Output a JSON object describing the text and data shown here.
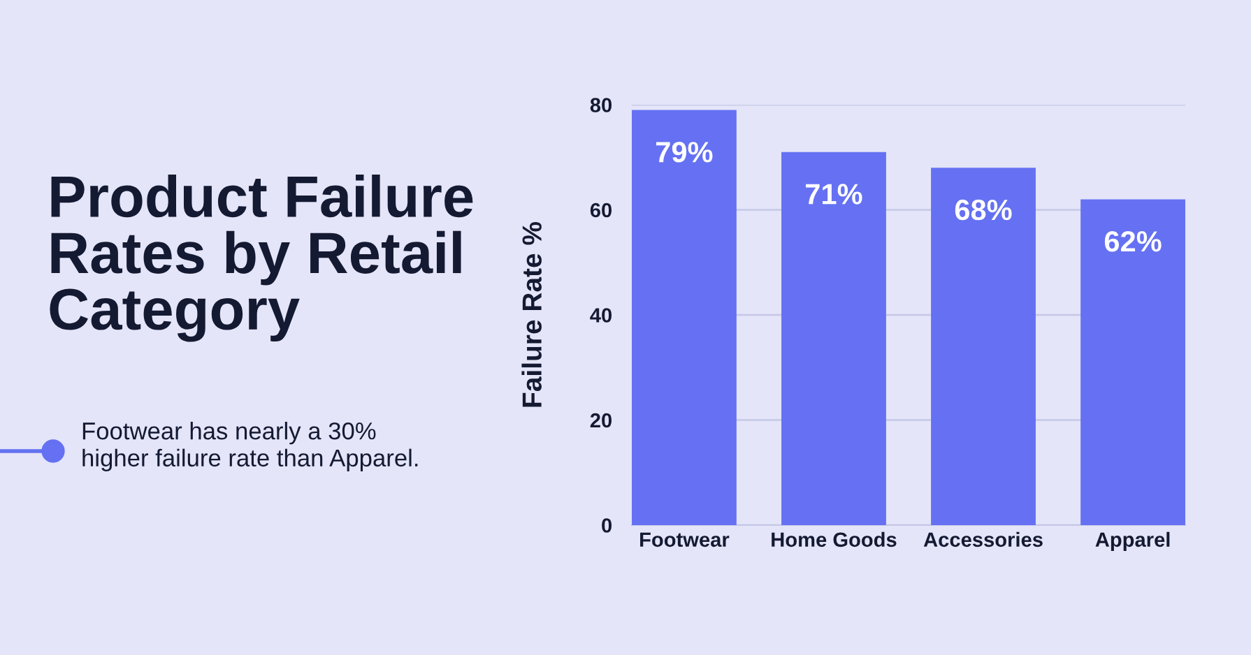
{
  "chart_data": {
    "type": "bar",
    "title": "Product Failure\nRates by Retail\nCategory",
    "annotations": [
      "Footwear has nearly a 30%\nhigher failure rate than Apparel."
    ],
    "ylabel": "Failure Rate %",
    "categories": [
      "Footwear",
      "Home Goods",
      "Accessories",
      "Apparel"
    ],
    "values": [
      79,
      71,
      68,
      62
    ],
    "value_labels": [
      "79%",
      "71%",
      "68%",
      "62%"
    ],
    "color": "#6571f2",
    "ylim": [
      0,
      80
    ],
    "yticks": [
      0,
      20,
      40,
      60,
      80
    ],
    "grid": "y"
  }
}
